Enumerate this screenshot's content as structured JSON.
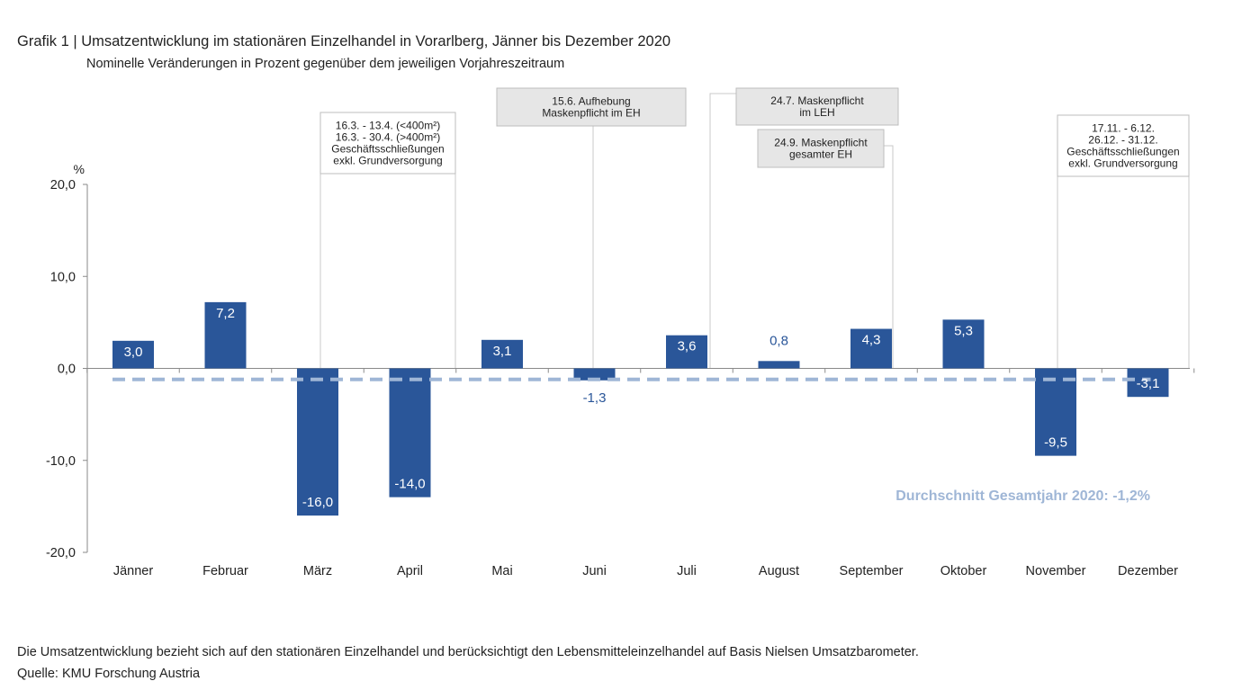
{
  "header": {
    "title": "Grafik 1 | Umsatzentwicklung im stationären Einzelhandel in Vorarlberg, Jänner bis Dezember 2020",
    "subtitle": "Nominelle Veränderungen in Prozent gegenüber dem jeweiligen Vorjahreszeitraum"
  },
  "footer": {
    "note": "Die Umsatzentwicklung bezieht sich auf den stationären Einzelhandel und berücksichtigt den Lebensmitteleinzelhandel auf Basis Nielsen Umsatzbarometer.",
    "source": "Quelle: KMU Forschung Austria"
  },
  "chart_data": {
    "type": "bar",
    "ylabel": "%",
    "ylim": [
      -20,
      20
    ],
    "yticks": [
      20,
      10,
      0,
      -10,
      -20
    ],
    "ytick_labels": [
      "20,0",
      "10,0",
      "0,0",
      "-10,0",
      "-20,0"
    ],
    "categories": [
      "Jänner",
      "Februar",
      "März",
      "April",
      "Mai",
      "Juni",
      "Juli",
      "August",
      "September",
      "Oktober",
      "November",
      "Dezember"
    ],
    "values": [
      3.0,
      7.2,
      -16.0,
      -14.0,
      3.1,
      -1.3,
      3.6,
      0.8,
      4.3,
      5.3,
      -9.5,
      -3.1
    ],
    "value_labels": [
      "3,0",
      "7,2",
      "-16,0",
      "-14,0",
      "3,1",
      "-1,3",
      "3,6",
      "0,8",
      "4,3",
      "5,3",
      "-9,5",
      "-3,1"
    ],
    "bar_color": "#2a5699",
    "average": {
      "value": -1.2,
      "label": "Durchschnitt Gesamtjahr 2020: -1,2%",
      "color": "#9fb6d6"
    },
    "annotations": [
      {
        "lines": [
          "16.3. - 13.4. (<400m²)",
          "16.3. - 30.4. (>400m²)",
          "Geschäftsschließungen",
          "exkl. Grundversorgung"
        ],
        "fill": "#ffffff"
      },
      {
        "lines": [
          "15.6. Aufhebung",
          "Maskenpflicht im EH"
        ],
        "fill": "#e6e6e6"
      },
      {
        "lines": [
          "24.7. Maskenpflicht",
          "im LEH"
        ],
        "fill": "#e6e6e6"
      },
      {
        "lines": [
          "24.9. Maskenpflicht",
          "gesamter EH"
        ],
        "fill": "#e6e6e6"
      },
      {
        "lines": [
          "17.11. - 6.12.",
          "26.12. - 31.12.",
          "Geschäftsschließungen",
          "exkl. Grundversorgung"
        ],
        "fill": "#ffffff"
      }
    ],
    "grid": false,
    "legend": "none"
  }
}
